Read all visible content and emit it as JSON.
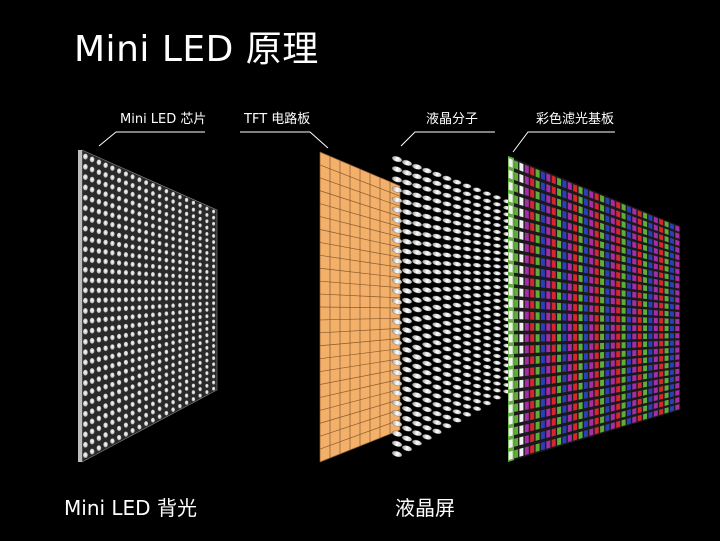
{
  "title": "Mini LED 原理",
  "labels": {
    "chip": "Mini LED 芯片",
    "tft": "TFT 电路板",
    "lc": "液晶分子",
    "cf": "彩色滤光基板"
  },
  "captions": {
    "backlight": "Mini LED 背光",
    "lcd": "液晶屏"
  },
  "colors": {
    "background": "#000000",
    "tft_fill": "#f2b06a",
    "cf_red": "#d8262e",
    "cf_green": "#5fae3a",
    "cf_blue": "#2a3fb8",
    "cf_purple": "#a62ca8"
  }
}
